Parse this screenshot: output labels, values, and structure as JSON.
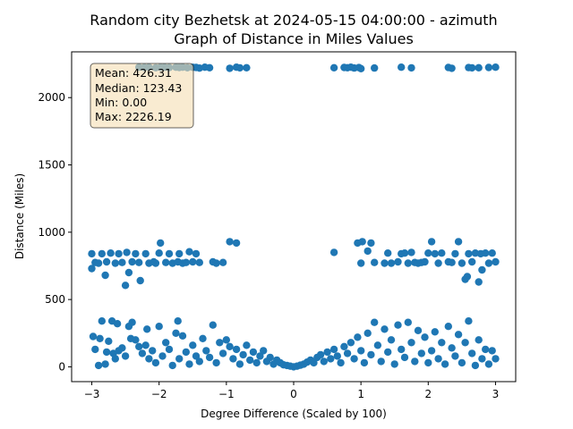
{
  "chart_data": {
    "type": "scatter",
    "title": "Random city Bezhetsk at 2024-05-15 04:00:00  - azimuth",
    "subtitle": "Graph of Distance in Miles Values",
    "xlabel": "Degree Difference (Scaled by 100)",
    "ylabel": "Distance (Miles)",
    "xlim": [
      -3.3,
      3.3
    ],
    "ylim": [
      -110,
      2340
    ],
    "xticks": [
      -3,
      -2,
      -1,
      0,
      1,
      2,
      3
    ],
    "yticks": [
      0,
      500,
      1000,
      1500,
      2000
    ],
    "grid": false,
    "marker_color": "#1f77b4",
    "stats": {
      "mean": "Mean: 426.31",
      "median": "Median: 123.43",
      "min": "Min: 0.00",
      "max": "Max: 2226.19"
    },
    "stats_box": {
      "placement": "top-left",
      "facecolor": "#f5deb3",
      "edgecolor": "#000000"
    },
    "series": [
      {
        "points": [
          [
            -2.3,
            2226
          ],
          [
            -2.22,
            2224
          ],
          [
            -2.15,
            2226
          ],
          [
            -2.05,
            2222
          ],
          [
            -1.98,
            2225
          ],
          [
            -1.92,
            2226
          ],
          [
            -1.85,
            2223
          ],
          [
            -1.75,
            2226
          ],
          [
            -1.7,
            2224
          ],
          [
            -1.65,
            2226
          ],
          [
            -1.58,
            2222
          ],
          [
            -1.5,
            2225
          ],
          [
            -1.45,
            2224
          ],
          [
            -1.4,
            2219
          ],
          [
            -1.32,
            2226
          ],
          [
            -1.25,
            2222
          ],
          [
            -0.95,
            2218
          ],
          [
            -0.85,
            2226
          ],
          [
            -0.8,
            2221
          ],
          [
            -0.7,
            2222
          ],
          [
            0.6,
            2222
          ],
          [
            0.75,
            2224
          ],
          [
            0.8,
            2222
          ],
          [
            0.85,
            2226
          ],
          [
            0.9,
            2220
          ],
          [
            0.97,
            2223
          ],
          [
            1.0,
            2215
          ],
          [
            1.2,
            2220
          ],
          [
            1.6,
            2226
          ],
          [
            1.75,
            2221
          ],
          [
            2.3,
            2224
          ],
          [
            2.35,
            2218
          ],
          [
            2.6,
            2223
          ],
          [
            2.65,
            2221
          ],
          [
            2.75,
            2222
          ],
          [
            2.9,
            2224
          ],
          [
            3.0,
            2226
          ],
          [
            -3.0,
            840
          ],
          [
            -3.0,
            730
          ],
          [
            -2.95,
            775
          ],
          [
            -2.9,
            770
          ],
          [
            -2.85,
            840
          ],
          [
            -2.8,
            680
          ],
          [
            -2.78,
            780
          ],
          [
            -2.72,
            845
          ],
          [
            -2.65,
            770
          ],
          [
            -2.6,
            840
          ],
          [
            -2.55,
            775
          ],
          [
            -2.5,
            605
          ],
          [
            -2.48,
            850
          ],
          [
            -2.45,
            700
          ],
          [
            -2.4,
            780
          ],
          [
            -2.35,
            840
          ],
          [
            -2.3,
            775
          ],
          [
            -2.28,
            640
          ],
          [
            -2.2,
            840
          ],
          [
            -2.15,
            770
          ],
          [
            -2.08,
            780
          ],
          [
            -2.05,
            770
          ],
          [
            -2.0,
            845
          ],
          [
            -1.98,
            920
          ],
          [
            -1.9,
            775
          ],
          [
            -1.85,
            840
          ],
          [
            -1.8,
            770
          ],
          [
            -1.72,
            780
          ],
          [
            -1.7,
            840
          ],
          [
            -1.65,
            770
          ],
          [
            -1.6,
            775
          ],
          [
            -1.55,
            855
          ],
          [
            -1.5,
            780
          ],
          [
            -1.45,
            840
          ],
          [
            -1.4,
            775
          ],
          [
            -1.2,
            780
          ],
          [
            -1.15,
            770
          ],
          [
            -1.05,
            775
          ],
          [
            -0.95,
            930
          ],
          [
            -0.85,
            920
          ],
          [
            0.6,
            850
          ],
          [
            0.95,
            920
          ],
          [
            1.0,
            770
          ],
          [
            1.02,
            930
          ],
          [
            1.1,
            860
          ],
          [
            1.15,
            920
          ],
          [
            1.2,
            775
          ],
          [
            1.35,
            770
          ],
          [
            1.4,
            845
          ],
          [
            1.45,
            770
          ],
          [
            1.55,
            780
          ],
          [
            1.6,
            840
          ],
          [
            1.65,
            845
          ],
          [
            1.7,
            770
          ],
          [
            1.75,
            850
          ],
          [
            1.8,
            775
          ],
          [
            1.85,
            770
          ],
          [
            1.9,
            775
          ],
          [
            1.95,
            780
          ],
          [
            2.0,
            845
          ],
          [
            2.05,
            930
          ],
          [
            2.1,
            840
          ],
          [
            2.15,
            770
          ],
          [
            2.2,
            845
          ],
          [
            2.3,
            780
          ],
          [
            2.35,
            775
          ],
          [
            2.4,
            840
          ],
          [
            2.45,
            930
          ],
          [
            2.5,
            770
          ],
          [
            2.55,
            650
          ],
          [
            2.58,
            670
          ],
          [
            2.6,
            840
          ],
          [
            2.65,
            780
          ],
          [
            2.7,
            845
          ],
          [
            2.75,
            630
          ],
          [
            2.78,
            840
          ],
          [
            2.8,
            720
          ],
          [
            2.85,
            845
          ],
          [
            2.9,
            770
          ],
          [
            2.95,
            845
          ],
          [
            3.0,
            780
          ],
          [
            -2.98,
            225
          ],
          [
            -2.95,
            130
          ],
          [
            -2.9,
            10
          ],
          [
            -2.88,
            210
          ],
          [
            -2.85,
            340
          ],
          [
            -2.8,
            20
          ],
          [
            -2.78,
            110
          ],
          [
            -2.75,
            190
          ],
          [
            -2.7,
            340
          ],
          [
            -2.68,
            100
          ],
          [
            -2.65,
            60
          ],
          [
            -2.62,
            320
          ],
          [
            -2.6,
            120
          ],
          [
            -2.55,
            140
          ],
          [
            -2.5,
            80
          ],
          [
            -2.45,
            300
          ],
          [
            -2.42,
            210
          ],
          [
            -2.4,
            330
          ],
          [
            -2.35,
            200
          ],
          [
            -2.3,
            150
          ],
          [
            -2.25,
            100
          ],
          [
            -2.2,
            160
          ],
          [
            -2.18,
            280
          ],
          [
            -2.15,
            60
          ],
          [
            -2.1,
            120
          ],
          [
            -2.05,
            30
          ],
          [
            -2.0,
            300
          ],
          [
            -1.95,
            80
          ],
          [
            -1.9,
            180
          ],
          [
            -1.85,
            130
          ],
          [
            -1.8,
            10
          ],
          [
            -1.75,
            250
          ],
          [
            -1.72,
            340
          ],
          [
            -1.7,
            60
          ],
          [
            -1.65,
            230
          ],
          [
            -1.6,
            110
          ],
          [
            -1.55,
            20
          ],
          [
            -1.5,
            160
          ],
          [
            -1.45,
            80
          ],
          [
            -1.4,
            40
          ],
          [
            -1.35,
            210
          ],
          [
            -1.3,
            120
          ],
          [
            -1.25,
            70
          ],
          [
            -1.2,
            310
          ],
          [
            -1.15,
            30
          ],
          [
            -1.1,
            180
          ],
          [
            -1.05,
            100
          ],
          [
            -1.0,
            200
          ],
          [
            -0.95,
            150
          ],
          [
            -0.9,
            60
          ],
          [
            -0.85,
            130
          ],
          [
            -0.8,
            20
          ],
          [
            -0.75,
            90
          ],
          [
            -0.7,
            160
          ],
          [
            -0.65,
            50
          ],
          [
            -0.6,
            110
          ],
          [
            -0.55,
            30
          ],
          [
            -0.5,
            80
          ],
          [
            -0.45,
            120
          ],
          [
            -0.4,
            40
          ],
          [
            -0.35,
            70
          ],
          [
            -0.3,
            20
          ],
          [
            -0.25,
            50
          ],
          [
            -0.2,
            30
          ],
          [
            -0.15,
            15
          ],
          [
            -0.1,
            10
          ],
          [
            -0.05,
            5
          ],
          [
            0.0,
            0
          ],
          [
            0.05,
            5
          ],
          [
            0.1,
            12
          ],
          [
            0.15,
            20
          ],
          [
            0.2,
            35
          ],
          [
            0.25,
            50
          ],
          [
            0.3,
            30
          ],
          [
            0.35,
            70
          ],
          [
            0.4,
            90
          ],
          [
            0.45,
            40
          ],
          [
            0.5,
            110
          ],
          [
            0.55,
            60
          ],
          [
            0.6,
            130
          ],
          [
            0.65,
            80
          ],
          [
            0.7,
            30
          ],
          [
            0.75,
            150
          ],
          [
            0.8,
            100
          ],
          [
            0.85,
            180
          ],
          [
            0.9,
            60
          ],
          [
            0.95,
            220
          ],
          [
            1.0,
            120
          ],
          [
            1.05,
            30
          ],
          [
            1.1,
            250
          ],
          [
            1.15,
            90
          ],
          [
            1.2,
            330
          ],
          [
            1.25,
            160
          ],
          [
            1.3,
            40
          ],
          [
            1.35,
            280
          ],
          [
            1.4,
            110
          ],
          [
            1.45,
            200
          ],
          [
            1.5,
            20
          ],
          [
            1.55,
            310
          ],
          [
            1.6,
            130
          ],
          [
            1.65,
            70
          ],
          [
            1.7,
            330
          ],
          [
            1.75,
            180
          ],
          [
            1.8,
            40
          ],
          [
            1.85,
            270
          ],
          [
            1.9,
            100
          ],
          [
            1.95,
            220
          ],
          [
            2.0,
            30
          ],
          [
            2.05,
            120
          ],
          [
            2.1,
            260
          ],
          [
            2.15,
            60
          ],
          [
            2.2,
            180
          ],
          [
            2.25,
            20
          ],
          [
            2.3,
            300
          ],
          [
            2.35,
            140
          ],
          [
            2.4,
            80
          ],
          [
            2.45,
            240
          ],
          [
            2.5,
            30
          ],
          [
            2.55,
            180
          ],
          [
            2.6,
            340
          ],
          [
            2.65,
            100
          ],
          [
            2.7,
            10
          ],
          [
            2.75,
            200
          ],
          [
            2.8,
            60
          ],
          [
            2.85,
            130
          ],
          [
            2.9,
            20
          ],
          [
            2.95,
            120
          ],
          [
            3.0,
            60
          ]
        ]
      }
    ]
  }
}
